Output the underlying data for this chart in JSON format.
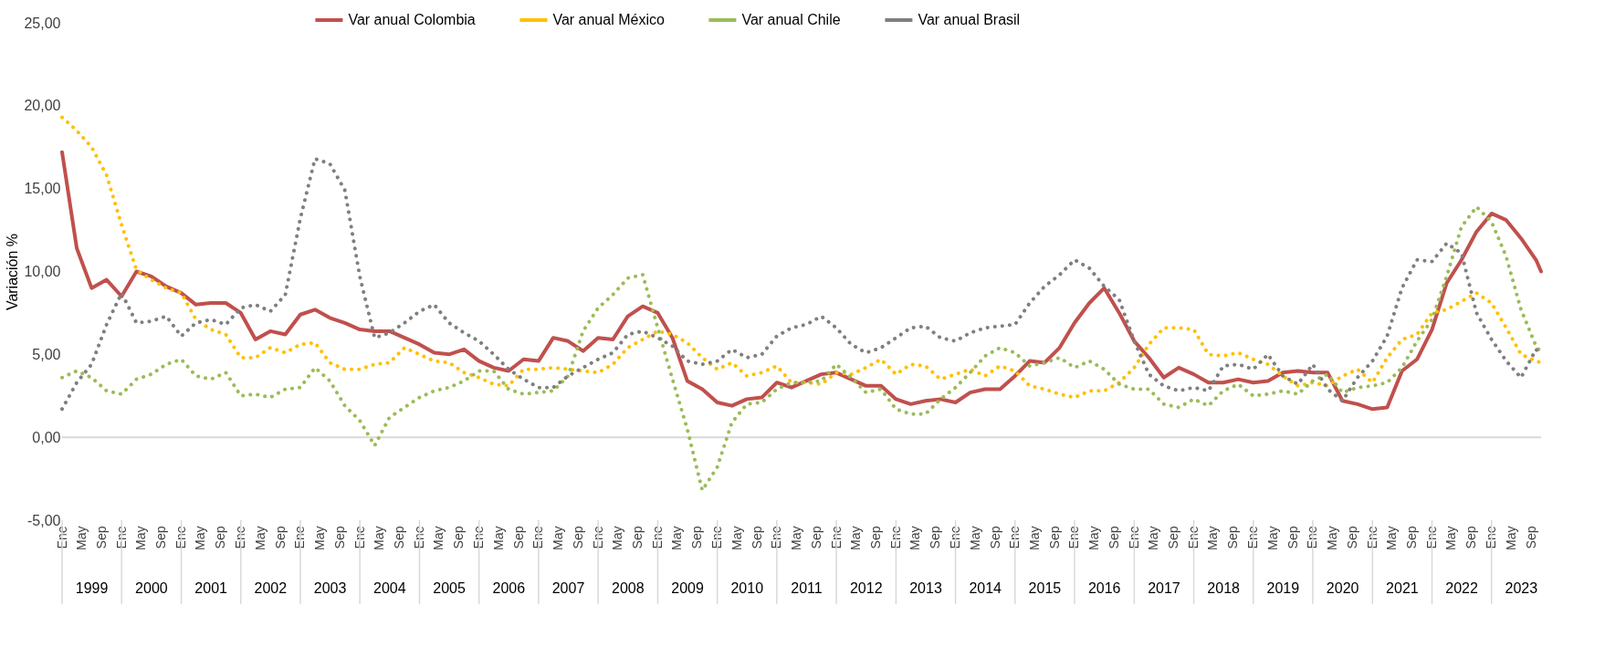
{
  "chart_data": {
    "type": "line",
    "ylabel": "Variación %",
    "x": [
      "1999-01",
      "1999-04",
      "1999-07",
      "1999-10",
      "2000-01",
      "2000-04",
      "2000-07",
      "2000-10",
      "2001-01",
      "2001-04",
      "2001-07",
      "2001-10",
      "2002-01",
      "2002-04",
      "2002-07",
      "2002-10",
      "2003-01",
      "2003-04",
      "2003-07",
      "2003-10",
      "2004-01",
      "2004-04",
      "2004-07",
      "2004-10",
      "2005-01",
      "2005-04",
      "2005-07",
      "2005-10",
      "2006-01",
      "2006-04",
      "2006-07",
      "2006-10",
      "2007-01",
      "2007-04",
      "2007-07",
      "2007-10",
      "2008-01",
      "2008-04",
      "2008-07",
      "2008-10",
      "2009-01",
      "2009-04",
      "2009-07",
      "2009-10",
      "2010-01",
      "2010-04",
      "2010-07",
      "2010-10",
      "2011-01",
      "2011-04",
      "2011-07",
      "2011-10",
      "2012-01",
      "2012-04",
      "2012-07",
      "2012-10",
      "2013-01",
      "2013-04",
      "2013-07",
      "2013-10",
      "2014-01",
      "2014-04",
      "2014-07",
      "2014-10",
      "2015-01",
      "2015-04",
      "2015-07",
      "2015-10",
      "2016-01",
      "2016-04",
      "2016-07",
      "2016-10",
      "2017-01",
      "2017-04",
      "2017-07",
      "2017-10",
      "2018-01",
      "2018-04",
      "2018-07",
      "2018-10",
      "2019-01",
      "2019-04",
      "2019-07",
      "2019-10",
      "2020-01",
      "2020-04",
      "2020-07",
      "2020-10",
      "2021-01",
      "2021-04",
      "2021-07",
      "2021-10",
      "2022-01",
      "2022-04",
      "2022-07",
      "2022-10",
      "2023-01",
      "2023-04",
      "2023-07",
      "2023-10",
      "2023-11"
    ],
    "series": [
      {
        "name": "Var anual Colombia",
        "color": "#c0504d",
        "line_style": "solid",
        "values": [
          17.2,
          11.4,
          9.0,
          9.5,
          8.5,
          10.0,
          9.7,
          9.1,
          8.7,
          8.0,
          8.1,
          8.1,
          7.5,
          5.9,
          6.4,
          6.2,
          7.4,
          7.7,
          7.2,
          6.9,
          6.5,
          6.4,
          6.4,
          6.0,
          5.6,
          5.1,
          5.0,
          5.3,
          4.6,
          4.2,
          4.0,
          4.7,
          4.6,
          6.0,
          5.8,
          5.2,
          6.0,
          5.9,
          7.3,
          7.9,
          7.5,
          6.0,
          3.4,
          2.9,
          2.1,
          1.9,
          2.3,
          2.4,
          3.3,
          3.0,
          3.4,
          3.8,
          3.9,
          3.5,
          3.1,
          3.1,
          2.3,
          2.0,
          2.2,
          2.3,
          2.1,
          2.7,
          2.9,
          2.9,
          3.7,
          4.6,
          4.5,
          5.4,
          6.9,
          8.1,
          9.0,
          7.5,
          5.8,
          4.8,
          3.6,
          4.2,
          3.8,
          3.3,
          3.3,
          3.5,
          3.3,
          3.4,
          3.9,
          4.0,
          3.9,
          3.9,
          2.2,
          2.0,
          1.7,
          1.8,
          4.0,
          4.7,
          6.5,
          9.3,
          10.7,
          12.4,
          13.5,
          13.1,
          12.0,
          10.7,
          10.0
        ]
      },
      {
        "name": "Var anual México",
        "color": "#ffc000",
        "line_style": "dotted",
        "values": [
          19.3,
          18.5,
          17.5,
          15.8,
          12.8,
          10.1,
          9.5,
          9.0,
          8.7,
          7.1,
          6.5,
          6.2,
          4.8,
          4.8,
          5.4,
          5.1,
          5.6,
          5.7,
          4.5,
          4.1,
          4.1,
          4.4,
          4.5,
          5.4,
          5.0,
          4.6,
          4.5,
          3.9,
          3.6,
          3.2,
          3.1,
          4.1,
          4.1,
          4.2,
          4.1,
          4.0,
          3.9,
          4.4,
          5.4,
          5.9,
          6.4,
          6.2,
          5.7,
          4.8,
          4.1,
          4.5,
          3.7,
          3.9,
          4.3,
          3.3,
          3.3,
          3.2,
          3.9,
          3.8,
          4.2,
          4.7,
          3.8,
          4.4,
          4.3,
          3.5,
          3.8,
          4.1,
          3.7,
          4.3,
          4.0,
          3.1,
          2.9,
          2.6,
          2.4,
          2.8,
          2.8,
          3.3,
          4.2,
          5.6,
          6.6,
          6.6,
          6.5,
          5.0,
          4.9,
          5.1,
          4.7,
          4.4,
          3.7,
          3.1,
          3.3,
          3.1,
          3.7,
          4.1,
          3.3,
          4.8,
          5.9,
          6.2,
          7.5,
          7.7,
          8.2,
          8.7,
          8.1,
          6.6,
          5.0,
          4.6,
          4.5
        ]
      },
      {
        "name": "Var anual Chile",
        "color": "#9bbb59",
        "line_style": "dotted",
        "values": [
          3.6,
          4.0,
          3.6,
          2.8,
          2.6,
          3.5,
          3.8,
          4.4,
          4.7,
          3.7,
          3.5,
          3.9,
          2.5,
          2.6,
          2.4,
          2.9,
          3.0,
          4.2,
          3.4,
          1.9,
          1.0,
          -0.5,
          1.2,
          1.8,
          2.4,
          2.8,
          3.0,
          3.4,
          4.0,
          4.0,
          2.9,
          2.6,
          2.7,
          2.8,
          3.7,
          6.4,
          7.8,
          8.6,
          9.6,
          9.8,
          6.6,
          3.5,
          0.5,
          -3.2,
          -1.8,
          0.9,
          2.0,
          2.1,
          2.9,
          3.3,
          3.3,
          3.4,
          4.4,
          3.6,
          2.7,
          2.9,
          1.7,
          1.4,
          1.4,
          2.3,
          3.0,
          3.9,
          4.9,
          5.4,
          5.1,
          4.3,
          4.5,
          4.8,
          4.2,
          4.6,
          4.1,
          3.2,
          2.9,
          2.9,
          2.0,
          1.8,
          2.3,
          1.9,
          2.8,
          3.2,
          2.5,
          2.6,
          2.8,
          2.6,
          3.4,
          3.8,
          2.7,
          3.0,
          3.1,
          3.3,
          4.2,
          5.8,
          7.1,
          9.7,
          12.7,
          13.9,
          13.0,
          10.9,
          7.7,
          5.5,
          5.1
        ]
      },
      {
        "name": "Var anual Brasil",
        "color": "#7f7f7f",
        "line_style": "dotted",
        "values": [
          1.7,
          3.3,
          4.4,
          6.8,
          8.7,
          6.9,
          7.0,
          7.3,
          6.1,
          6.9,
          7.1,
          6.8,
          7.8,
          8.0,
          7.6,
          8.6,
          13.2,
          16.8,
          16.5,
          14.9,
          9.7,
          6.0,
          6.3,
          6.9,
          7.6,
          8.0,
          6.9,
          6.3,
          5.8,
          5.0,
          4.1,
          3.5,
          3.0,
          3.0,
          3.7,
          4.2,
          4.7,
          5.1,
          6.2,
          6.4,
          6.0,
          5.5,
          4.6,
          4.4,
          4.6,
          5.3,
          4.8,
          5.0,
          6.1,
          6.6,
          6.8,
          7.3,
          6.6,
          5.6,
          5.1,
          5.4,
          6.0,
          6.6,
          6.7,
          6.0,
          5.8,
          6.3,
          6.6,
          6.7,
          6.8,
          8.1,
          9.1,
          9.8,
          10.7,
          10.2,
          9.1,
          8.3,
          5.8,
          3.8,
          3.1,
          2.8,
          3.0,
          2.8,
          4.3,
          4.4,
          4.1,
          5.0,
          3.7,
          3.2,
          4.4,
          2.9,
          2.2,
          3.6,
          4.6,
          6.1,
          9.0,
          10.7,
          10.6,
          11.7,
          11.1,
          7.5,
          5.9,
          4.6,
          3.6,
          5.3,
          5.0
        ]
      }
    ],
    "ylim": [
      -5,
      25
    ],
    "yticks": [
      {
        "value": -5,
        "label": "-5,00"
      },
      {
        "value": 0,
        "label": "0,00"
      },
      {
        "value": 5,
        "label": "5,00"
      },
      {
        "value": 10,
        "label": "10,00"
      },
      {
        "value": 15,
        "label": "15,00"
      },
      {
        "value": 20,
        "label": "20,00"
      },
      {
        "value": 25,
        "label": "25,00"
      }
    ],
    "xlim": [
      "1999-01",
      "2023-11"
    ],
    "xticks": [
      {
        "value": "1999-01",
        "label": "Ene"
      },
      {
        "value": "1999-05",
        "label": "May"
      },
      {
        "value": "1999-09",
        "label": "Sep"
      },
      {
        "value": "2000-01",
        "label": "Ene"
      },
      {
        "value": "2000-05",
        "label": "May"
      },
      {
        "value": "2000-09",
        "label": "Sep"
      },
      {
        "value": "2001-01",
        "label": "Ene"
      },
      {
        "value": "2001-05",
        "label": "May"
      },
      {
        "value": "2001-09",
        "label": "Sep"
      },
      {
        "value": "2002-01",
        "label": "Ene"
      },
      {
        "value": "2002-05",
        "label": "May"
      },
      {
        "value": "2002-09",
        "label": "Sep"
      },
      {
        "value": "2003-01",
        "label": "Ene"
      },
      {
        "value": "2003-05",
        "label": "May"
      },
      {
        "value": "2003-09",
        "label": "Sep"
      },
      {
        "value": "2004-01",
        "label": "Ene"
      },
      {
        "value": "2004-05",
        "label": "May"
      },
      {
        "value": "2004-09",
        "label": "Sep"
      },
      {
        "value": "2005-01",
        "label": "Ene"
      },
      {
        "value": "2005-05",
        "label": "May"
      },
      {
        "value": "2005-09",
        "label": "Sep"
      },
      {
        "value": "2006-01",
        "label": "Ene"
      },
      {
        "value": "2006-05",
        "label": "May"
      },
      {
        "value": "2006-09",
        "label": "Sep"
      },
      {
        "value": "2007-01",
        "label": "Ene"
      },
      {
        "value": "2007-05",
        "label": "May"
      },
      {
        "value": "2007-09",
        "label": "Sep"
      },
      {
        "value": "2008-01",
        "label": "Ene"
      },
      {
        "value": "2008-05",
        "label": "May"
      },
      {
        "value": "2008-09",
        "label": "Sep"
      },
      {
        "value": "2009-01",
        "label": "Ene"
      },
      {
        "value": "2009-05",
        "label": "May"
      },
      {
        "value": "2009-09",
        "label": "Sep"
      },
      {
        "value": "2010-01",
        "label": "Ene"
      },
      {
        "value": "2010-05",
        "label": "May"
      },
      {
        "value": "2010-09",
        "label": "Sep"
      },
      {
        "value": "2011-01",
        "label": "Ene"
      },
      {
        "value": "2011-05",
        "label": "May"
      },
      {
        "value": "2011-09",
        "label": "Sep"
      },
      {
        "value": "2012-01",
        "label": "Ene"
      },
      {
        "value": "2012-05",
        "label": "May"
      },
      {
        "value": "2012-09",
        "label": "Sep"
      },
      {
        "value": "2013-01",
        "label": "Ene"
      },
      {
        "value": "2013-05",
        "label": "May"
      },
      {
        "value": "2013-09",
        "label": "Sep"
      },
      {
        "value": "2014-01",
        "label": "Ene"
      },
      {
        "value": "2014-05",
        "label": "May"
      },
      {
        "value": "2014-09",
        "label": "Sep"
      },
      {
        "value": "2015-01",
        "label": "Ene"
      },
      {
        "value": "2015-05",
        "label": "May"
      },
      {
        "value": "2015-09",
        "label": "Sep"
      },
      {
        "value": "2016-01",
        "label": "Ene"
      },
      {
        "value": "2016-05",
        "label": "May"
      },
      {
        "value": "2016-09",
        "label": "Sep"
      },
      {
        "value": "2017-01",
        "label": "Ene"
      },
      {
        "value": "2017-05",
        "label": "May"
      },
      {
        "value": "2017-09",
        "label": "Sep"
      },
      {
        "value": "2018-01",
        "label": "Ene"
      },
      {
        "value": "2018-05",
        "label": "May"
      },
      {
        "value": "2018-09",
        "label": "Sep"
      },
      {
        "value": "2019-01",
        "label": "Ene"
      },
      {
        "value": "2019-05",
        "label": "May"
      },
      {
        "value": "2019-09",
        "label": "Sep"
      },
      {
        "value": "2020-01",
        "label": "Ene"
      },
      {
        "value": "2020-05",
        "label": "May"
      },
      {
        "value": "2020-09",
        "label": "Sep"
      },
      {
        "value": "2021-01",
        "label": "Ene"
      },
      {
        "value": "2021-05",
        "label": "May"
      },
      {
        "value": "2021-09",
        "label": "Sep"
      },
      {
        "value": "2022-01",
        "label": "Ene"
      },
      {
        "value": "2022-05",
        "label": "May"
      },
      {
        "value": "2022-09",
        "label": "Sep"
      },
      {
        "value": "2023-01",
        "label": "Ene"
      },
      {
        "value": "2023-05",
        "label": "May"
      },
      {
        "value": "2023-09",
        "label": "Sep"
      }
    ],
    "annotations": [
      "1999",
      "2000",
      "2001",
      "2002",
      "2003",
      "2004",
      "2005",
      "2006",
      "2007",
      "2008",
      "2009",
      "2010",
      "2011",
      "2012",
      "2013",
      "2014",
      "2015",
      "2016",
      "2017",
      "2018",
      "2019",
      "2020",
      "2021",
      "2022",
      "2023"
    ],
    "ref_lines": [
      {
        "axis": "y",
        "value": 0,
        "color": "#d9d9d9"
      }
    ],
    "grid": false,
    "legend": "top"
  }
}
